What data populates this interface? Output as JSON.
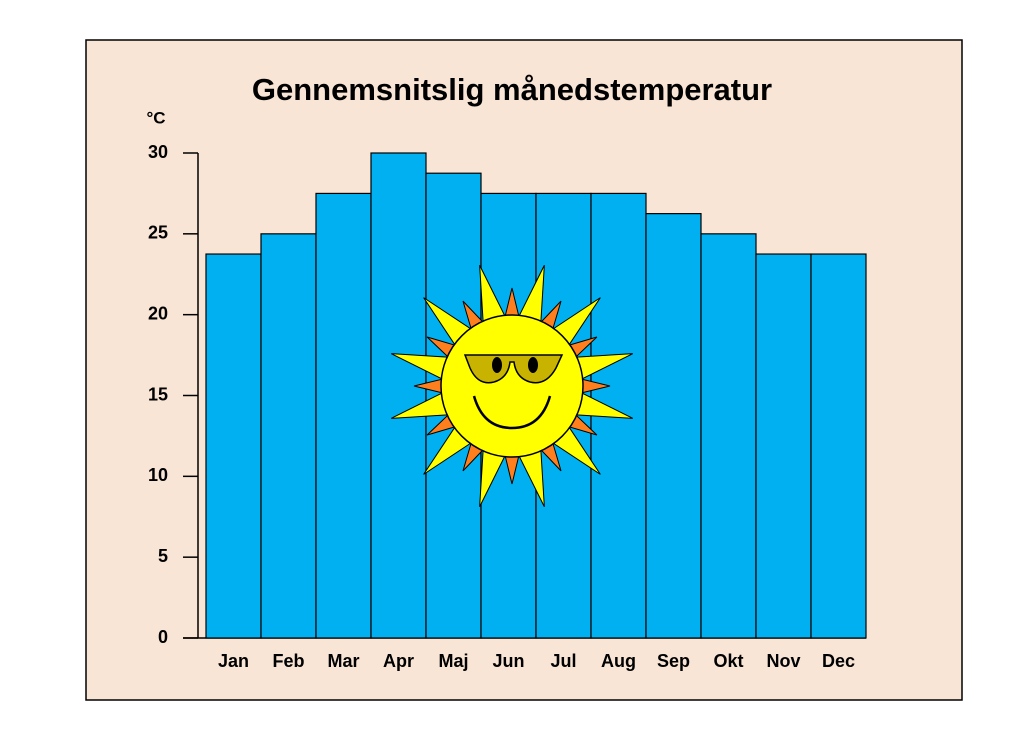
{
  "chart_data": {
    "type": "bar",
    "title": "Gennemsnitslig månedstemperatur",
    "y_label": "°C",
    "categories": [
      "Jan",
      "Feb",
      "Mar",
      "Apr",
      "Maj",
      "Jun",
      "Jul",
      "Aug",
      "Sep",
      "Okt",
      "Nov",
      "Dec"
    ],
    "values": [
      23.75,
      25,
      27.5,
      30,
      28.75,
      27.5,
      27.5,
      27.5,
      26.25,
      25,
      23.75,
      23.75
    ],
    "color": "#00b0f0",
    "ylim": [
      0,
      30
    ],
    "yticks": [
      0,
      5,
      10,
      15,
      20,
      25,
      30
    ]
  }
}
